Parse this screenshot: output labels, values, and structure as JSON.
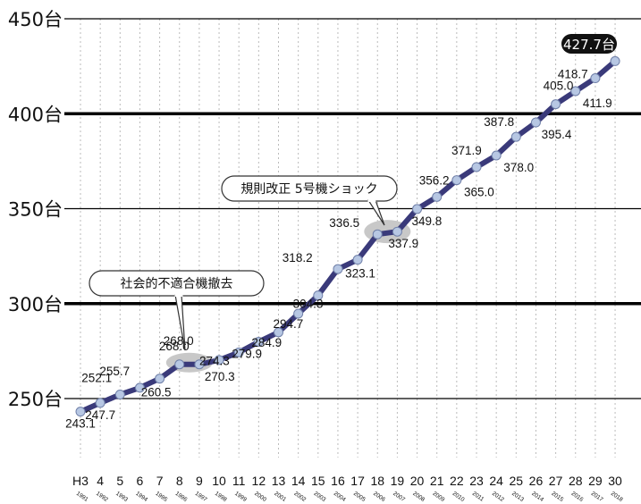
{
  "chart_data": {
    "type": "line",
    "y_unit": "台",
    "ylim": [
      250,
      450
    ],
    "y_ticks": [
      "450台",
      "400台",
      "350台",
      "300台",
      "250台"
    ],
    "x_labels": [
      "H3",
      "4",
      "5",
      "6",
      "7",
      "8",
      "9",
      "10",
      "11",
      "12",
      "13",
      "14",
      "15",
      "16",
      "17",
      "18",
      "19",
      "20",
      "21",
      "22",
      "23",
      "24",
      "25",
      "26",
      "27",
      "28",
      "29",
      "30"
    ],
    "years": [
      "1991",
      "1992",
      "1993",
      "1994",
      "1995",
      "1996",
      "1997",
      "1998",
      "1999",
      "2000",
      "2001",
      "2002",
      "2003",
      "2004",
      "2005",
      "2006",
      "2007",
      "2008",
      "2009",
      "2010",
      "2011",
      "2012",
      "2013",
      "2014",
      "2015",
      "2016",
      "2017",
      "2018"
    ],
    "values": [
      243.1,
      252.1,
      255.7,
      247.7,
      260.5,
      268.0,
      268.0,
      270.3,
      274.3,
      279.9,
      284.9,
      294.7,
      304.3,
      318.2,
      323.1,
      336.5,
      337.9,
      349.8,
      356.2,
      365.0,
      371.9,
      378.0,
      387.8,
      395.4,
      405.0,
      411.9,
      418.7,
      427.7
    ],
    "labels": [
      "243.1",
      "252.1",
      "255.7",
      "247.7",
      "260.5",
      "268.0",
      "268.0",
      "270.3",
      "274.3",
      "279.9",
      "284.9",
      "294.7",
      "304.3",
      "318.2",
      "323.1",
      "336.5",
      "337.9",
      "349.8",
      "356.2",
      "365.0",
      "371.9",
      "378.0",
      "387.8",
      "395.4",
      "405.0",
      "411.9",
      "418.7",
      "427.7台"
    ],
    "annotations": [
      "社会的不適合機撤去",
      "規則改正 5号機ショック"
    ],
    "colors": {
      "line": "#3a3a7a",
      "marker": "#b7c7e3",
      "gray_ellipse": "#c8c8c8",
      "badge": "#111111"
    },
    "grid": true
  }
}
